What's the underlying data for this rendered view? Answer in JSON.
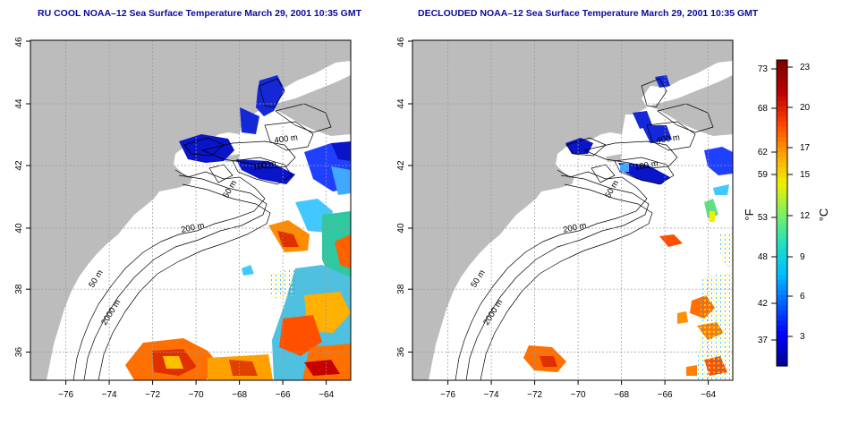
{
  "panels": [
    {
      "title": "RU COOL NOAA–12 Sea Surface Temperature March 29, 2001 10:35 GMT",
      "variant": "raw"
    },
    {
      "title": "DECLOUDED NOAA–12 Sea Surface Temperature March 29, 2001 10:35 GMT",
      "variant": "declouded"
    }
  ],
  "axes": {
    "lon_ticks": [
      "−76",
      "−74",
      "−72",
      "−70",
      "−68",
      "−66",
      "−64"
    ],
    "lat_ticks": [
      "36",
      "38",
      "40",
      "42",
      "44",
      "46"
    ],
    "lon_range": [
      -77.0,
      -63.0
    ],
    "lat_range": [
      35.0,
      46.0
    ]
  },
  "isobath_labels": [
    "400 m",
    "100 m",
    "50 m",
    "200 m",
    "50 m",
    "2000 m"
  ],
  "colorbar": {
    "left_unit": "°F",
    "right_unit": "°C",
    "fahrenheit_ticks": [
      "73",
      "68",
      "62",
      "59",
      "53",
      "48",
      "42",
      "37"
    ],
    "celsius_ticks": [
      "23",
      "20",
      "17",
      "15",
      "12",
      "9",
      "6",
      "3"
    ],
    "range_c": [
      0,
      24
    ],
    "colors": [
      "#00009a",
      "#0000ff",
      "#0060ff",
      "#00c0ff",
      "#20e0c0",
      "#80f060",
      "#f0f000",
      "#ffa000",
      "#ff4000",
      "#c00000",
      "#800000"
    ]
  },
  "colors": {
    "land": "#bcbcbc",
    "sea": "#ffffff",
    "grid": "#9a9a9a",
    "title": "#0a0a9a"
  }
}
